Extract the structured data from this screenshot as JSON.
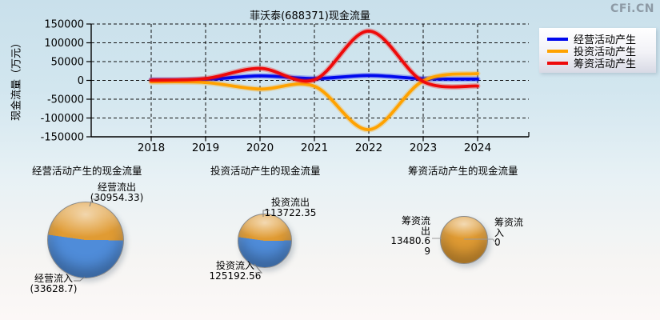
{
  "watermark": "CFi.CN",
  "chart_data": [
    {
      "type": "line",
      "title": "菲沃泰(688371)现金流量",
      "ylabel": "现金流量（万元）",
      "xlabel": "",
      "x": [
        2018,
        2019,
        2020,
        2021,
        2022,
        2023,
        2024
      ],
      "xticks": [
        "2018",
        "2019",
        "2020",
        "2021",
        "2022",
        "2023",
        "2024"
      ],
      "yticks": [
        "150000",
        "100000",
        "50000",
        "0",
        "-50000",
        "-100000",
        "-150000"
      ],
      "ylim": [
        -150000,
        150000
      ],
      "ytick_step": 50000,
      "grid": true,
      "grid_style": "dashed",
      "legend_position": "top-right",
      "unit": "万元",
      "series": [
        {
          "name": "经营活动产生",
          "color": "#0008ee",
          "values": [
            1000,
            2500,
            12000,
            5000,
            13000,
            4500,
            3500
          ]
        },
        {
          "name": "投资活动产生",
          "color": "#ffa200",
          "values": [
            -4000,
            -5500,
            -23000,
            -15500,
            -131000,
            -1000,
            18000
          ]
        },
        {
          "name": "筹资活动产生",
          "color": "#ee0a0a",
          "values": [
            500,
            5000,
            32000,
            1500,
            131000,
            -3000,
            -15000
          ]
        }
      ]
    },
    {
      "type": "pie",
      "title": "经营活动产生的现金流量",
      "slices": [
        {
          "label": "经营流出",
          "value": 30954.33,
          "display": "(30954.33)",
          "color": "#e09b33"
        },
        {
          "label": "经营流入",
          "value": 33628.7,
          "display": "(33628.7)",
          "color": "#4f8cd9"
        }
      ]
    },
    {
      "type": "pie",
      "title": "投资活动产生的现金流量",
      "slices": [
        {
          "label": "投资流出",
          "value": 113722.35,
          "display": "113722.35",
          "color": "#e09b33"
        },
        {
          "label": "投资流入",
          "value": 125192.56,
          "display": "125192.56",
          "color": "#4f8cd9"
        }
      ]
    },
    {
      "type": "pie",
      "title": "筹资活动产生的现金流量",
      "slices": [
        {
          "label": "筹资流出",
          "value": 13480.69,
          "display": "13480.69",
          "color": "#e09b33"
        },
        {
          "label": "筹资流入",
          "value": 0,
          "display": "0",
          "color": "#4f8cd9"
        }
      ]
    }
  ]
}
